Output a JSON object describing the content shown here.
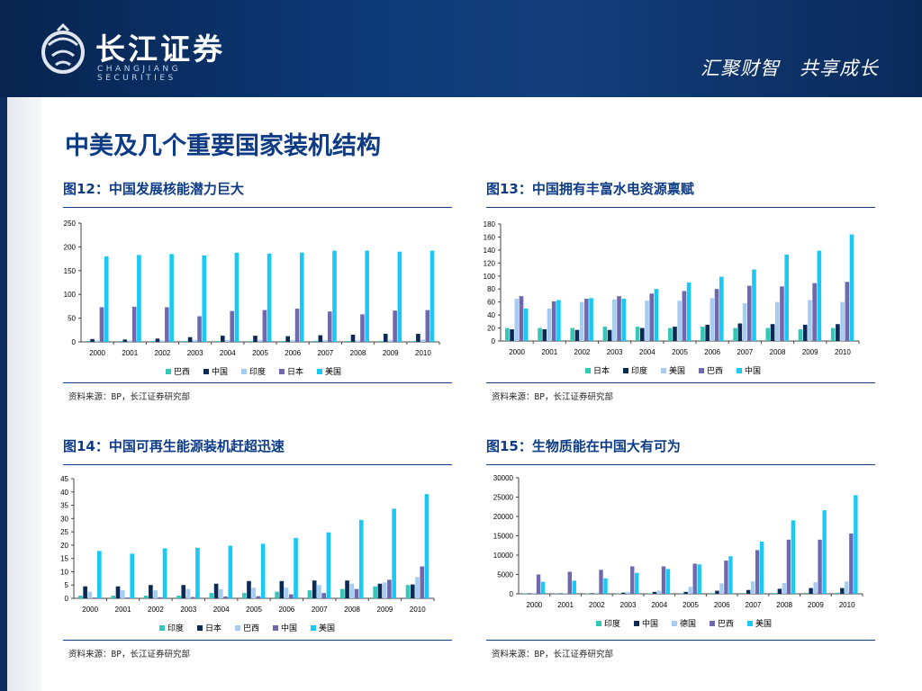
{
  "header": {
    "logo_cn": "长江证券",
    "logo_en": "CHANGJIANG SECURITIES",
    "slogan": "汇聚财智　共享成长",
    "colors": {
      "header_dark": "#08244f",
      "header_mid": "#123f7c"
    }
  },
  "page_title": "中美及几个重要国家装机结构",
  "charts": [
    {
      "title": "图12：中国发展核能潜力巨大",
      "source": "资料来源：BP，长江证券研究部",
      "chart_data": {
        "type": "bar",
        "categories": [
          "2000",
          "2001",
          "2002",
          "2003",
          "2004",
          "2005",
          "2006",
          "2007",
          "2008",
          "2009",
          "2010"
        ],
        "ylim": [
          0,
          250
        ],
        "yticks": [
          0,
          50,
          100,
          150,
          200,
          250
        ],
        "series": [
          {
            "name": "巴西",
            "color": "#34c6b6",
            "values": [
              2,
              2,
              2,
              2,
              2,
              2,
              2,
              2,
              2,
              2,
              2
            ]
          },
          {
            "name": "中国",
            "color": "#0b2a55",
            "values": [
              6,
              5,
              7,
              10,
              13,
              13,
              12,
              14,
              15,
              17,
              17
            ]
          },
          {
            "name": "印度",
            "color": "#a7ccf2",
            "values": [
              3,
              3,
              3,
              4,
              4,
              4,
              4,
              4,
              3,
              4,
              5
            ]
          },
          {
            "name": "日本",
            "color": "#7068ae",
            "values": [
              73,
              74,
              73,
              54,
              65,
              67,
              70,
              64,
              58,
              66,
              67
            ]
          },
          {
            "name": "美国",
            "color": "#19c9f5",
            "values": [
              180,
              183,
              185,
              182,
              188,
              186,
              188,
              192,
              192,
              190,
              192
            ]
          }
        ]
      }
    },
    {
      "title": "图13：中国拥有丰富水电资源禀赋",
      "source": "资料来源：BP，长江证券研究部",
      "chart_data": {
        "type": "bar",
        "categories": [
          "2000",
          "2001",
          "2002",
          "2003",
          "2004",
          "2005",
          "2006",
          "2007",
          "2008",
          "2009",
          "2010"
        ],
        "ylim": [
          0,
          180
        ],
        "yticks": [
          0,
          20,
          40,
          60,
          80,
          100,
          120,
          140,
          160,
          180
        ],
        "series": [
          {
            "name": "日本",
            "color": "#34c6b6",
            "values": [
              20,
              20,
              20,
              22,
              22,
              20,
              22,
              20,
              20,
              18,
              20
            ]
          },
          {
            "name": "印度",
            "color": "#0b2a55",
            "values": [
              18,
              18,
              17,
              17,
              20,
              22,
              25,
              27,
              26,
              25,
              26
            ]
          },
          {
            "name": "美国",
            "color": "#a7ccf2",
            "values": [
              65,
              50,
              60,
              64,
              62,
              62,
              66,
              58,
              60,
              63,
              60
            ]
          },
          {
            "name": "巴西",
            "color": "#7068ae",
            "values": [
              69,
              61,
              65,
              69,
              73,
              77,
              80,
              85,
              84,
              89,
              91
            ]
          },
          {
            "name": "中国",
            "color": "#19c9f5",
            "values": [
              50,
              63,
              66,
              65,
              80,
              90,
              99,
              110,
              133,
              139,
              164
            ]
          }
        ]
      }
    },
    {
      "title": "图14：中国可再生能源装机赶超迅速",
      "source": "资料来源：BP，长江证券研究部",
      "chart_data": {
        "type": "bar",
        "categories": [
          "2000",
          "2001",
          "2002",
          "2003",
          "2004",
          "2005",
          "2006",
          "2007",
          "2008",
          "2009",
          "2010"
        ],
        "ylim": [
          0,
          45
        ],
        "yticks": [
          0,
          5,
          10,
          15,
          20,
          25,
          30,
          35,
          40,
          45
        ],
        "series": [
          {
            "name": "印度",
            "color": "#34c6b6",
            "values": [
              1,
              1,
              1,
              1,
              2,
              2,
              2.5,
              3,
              3.5,
              4.5,
              5
            ]
          },
          {
            "name": "日本",
            "color": "#0b2a55",
            "values": [
              4.5,
              4.5,
              5,
              5,
              5.5,
              6.5,
              6.5,
              6.7,
              6.7,
              5.5,
              5.2
            ]
          },
          {
            "name": "巴西",
            "color": "#a7ccf2",
            "values": [
              2.5,
              3,
              3,
              3.5,
              3.5,
              4,
              4,
              5,
              5.5,
              6,
              8
            ]
          },
          {
            "name": "中国",
            "color": "#7068ae",
            "values": [
              0.3,
              0.3,
              0.4,
              0.5,
              0.7,
              0.8,
              1.5,
              2,
              3.5,
              7,
              12
            ]
          },
          {
            "name": "美国",
            "color": "#19c9f5",
            "values": [
              17.8,
              16.8,
              18.8,
              19,
              19.8,
              20.5,
              22.7,
              24.8,
              29.5,
              33.7,
              39.2
            ]
          }
        ]
      }
    },
    {
      "title": "图15：生物质能在中国大有可为",
      "source": "资料来源：BP，长江证券研究部",
      "chart_data": {
        "type": "bar",
        "categories": [
          "2000",
          "2001",
          "2002",
          "2003",
          "2004",
          "2005",
          "2006",
          "2007",
          "2008",
          "2009",
          "2010"
        ],
        "ylim": [
          0,
          30000
        ],
        "yticks": [
          0,
          5000,
          10000,
          15000,
          20000,
          25000,
          30000
        ],
        "series": [
          {
            "name": "印度",
            "color": "#34c6b6",
            "values": [
              100,
              100,
              100,
              100,
              150,
              150,
              200,
              200,
              200,
              250,
              300
            ]
          },
          {
            "name": "中国",
            "color": "#0b2a55",
            "values": [
              100,
              100,
              150,
              300,
              500,
              500,
              800,
              1000,
              1300,
              1500,
              1500
            ]
          },
          {
            "name": "德国",
            "color": "#a7ccf2",
            "values": [
              200,
              200,
              300,
              500,
              800,
              1800,
              2700,
              3200,
              2800,
              3000,
              3200
            ]
          },
          {
            "name": "巴西",
            "color": "#7068ae",
            "values": [
              5000,
              5700,
              6200,
              7100,
              7100,
              7800,
              8600,
              11300,
              14000,
              14000,
              15600
            ]
          },
          {
            "name": "美国",
            "color": "#19c9f5",
            "values": [
              3100,
              3400,
              4000,
              5400,
              6400,
              7600,
              9700,
              13500,
              19000,
              21600,
              25500
            ]
          }
        ]
      }
    }
  ]
}
